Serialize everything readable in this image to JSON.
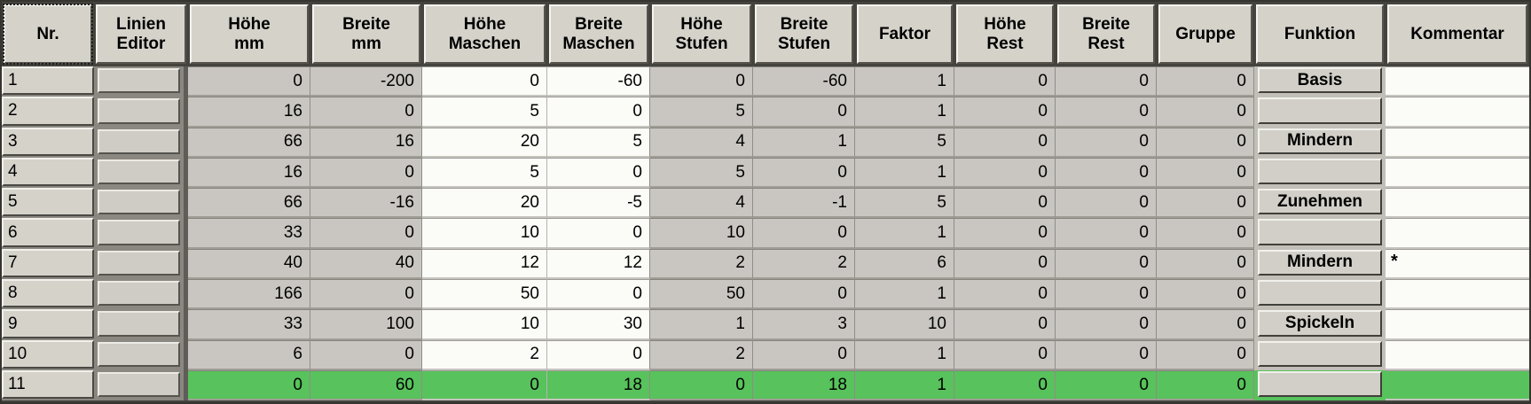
{
  "table": {
    "columns": [
      {
        "key": "nr",
        "label": "Nr."
      },
      {
        "key": "linien_editor",
        "label": "Linien\nEditor"
      },
      {
        "key": "hoehe_mm",
        "label": "Höhe\nmm"
      },
      {
        "key": "breite_mm",
        "label": "Breite\nmm"
      },
      {
        "key": "hoehe_maschen",
        "label": "Höhe\nMaschen"
      },
      {
        "key": "breite_maschen",
        "label": "Breite\nMaschen"
      },
      {
        "key": "hoehe_stufen",
        "label": "Höhe\nStufen"
      },
      {
        "key": "breite_stufen",
        "label": "Breite\nStufen"
      },
      {
        "key": "faktor",
        "label": "Faktor"
      },
      {
        "key": "hoehe_rest",
        "label": "Höhe\nRest"
      },
      {
        "key": "breite_rest",
        "label": "Breite\nRest"
      },
      {
        "key": "gruppe",
        "label": "Gruppe"
      },
      {
        "key": "funktion",
        "label": "Funktion"
      },
      {
        "key": "kommentar",
        "label": "Kommentar"
      }
    ],
    "rows": [
      {
        "nr": "1",
        "hoehe_mm": "0",
        "breite_mm": "-200",
        "hoehe_maschen": "0",
        "breite_maschen": "-60",
        "hoehe_stufen": "0",
        "breite_stufen": "-60",
        "faktor": "1",
        "hoehe_rest": "0",
        "breite_rest": "0",
        "gruppe": "0",
        "funktion": "Basis",
        "kommentar": "",
        "selected": false
      },
      {
        "nr": "2",
        "hoehe_mm": "16",
        "breite_mm": "0",
        "hoehe_maschen": "5",
        "breite_maschen": "0",
        "hoehe_stufen": "5",
        "breite_stufen": "0",
        "faktor": "1",
        "hoehe_rest": "0",
        "breite_rest": "0",
        "gruppe": "0",
        "funktion": "",
        "kommentar": "",
        "selected": false
      },
      {
        "nr": "3",
        "hoehe_mm": "66",
        "breite_mm": "16",
        "hoehe_maschen": "20",
        "breite_maschen": "5",
        "hoehe_stufen": "4",
        "breite_stufen": "1",
        "faktor": "5",
        "hoehe_rest": "0",
        "breite_rest": "0",
        "gruppe": "0",
        "funktion": "Mindern",
        "kommentar": "",
        "selected": false
      },
      {
        "nr": "4",
        "hoehe_mm": "16",
        "breite_mm": "0",
        "hoehe_maschen": "5",
        "breite_maschen": "0",
        "hoehe_stufen": "5",
        "breite_stufen": "0",
        "faktor": "1",
        "hoehe_rest": "0",
        "breite_rest": "0",
        "gruppe": "0",
        "funktion": "",
        "kommentar": "",
        "selected": false
      },
      {
        "nr": "5",
        "hoehe_mm": "66",
        "breite_mm": "-16",
        "hoehe_maschen": "20",
        "breite_maschen": "-5",
        "hoehe_stufen": "4",
        "breite_stufen": "-1",
        "faktor": "5",
        "hoehe_rest": "0",
        "breite_rest": "0",
        "gruppe": "0",
        "funktion": "Zunehmen",
        "kommentar": "",
        "selected": false
      },
      {
        "nr": "6",
        "hoehe_mm": "33",
        "breite_mm": "0",
        "hoehe_maschen": "10",
        "breite_maschen": "0",
        "hoehe_stufen": "10",
        "breite_stufen": "0",
        "faktor": "1",
        "hoehe_rest": "0",
        "breite_rest": "0",
        "gruppe": "0",
        "funktion": "",
        "kommentar": "",
        "selected": false
      },
      {
        "nr": "7",
        "hoehe_mm": "40",
        "breite_mm": "40",
        "hoehe_maschen": "12",
        "breite_maschen": "12",
        "hoehe_stufen": "2",
        "breite_stufen": "2",
        "faktor": "6",
        "hoehe_rest": "0",
        "breite_rest": "0",
        "gruppe": "0",
        "funktion": "Mindern",
        "kommentar": "*",
        "selected": false
      },
      {
        "nr": "8",
        "hoehe_mm": "166",
        "breite_mm": "0",
        "hoehe_maschen": "50",
        "breite_maschen": "0",
        "hoehe_stufen": "50",
        "breite_stufen": "0",
        "faktor": "1",
        "hoehe_rest": "0",
        "breite_rest": "0",
        "gruppe": "0",
        "funktion": "",
        "kommentar": "",
        "selected": false
      },
      {
        "nr": "9",
        "hoehe_mm": "33",
        "breite_mm": "100",
        "hoehe_maschen": "10",
        "breite_maschen": "30",
        "hoehe_stufen": "1",
        "breite_stufen": "3",
        "faktor": "10",
        "hoehe_rest": "0",
        "breite_rest": "0",
        "gruppe": "0",
        "funktion": "Spickeln",
        "kommentar": "",
        "selected": false
      },
      {
        "nr": "10",
        "hoehe_mm": "6",
        "breite_mm": "0",
        "hoehe_maschen": "2",
        "breite_maschen": "0",
        "hoehe_stufen": "2",
        "breite_stufen": "0",
        "faktor": "1",
        "hoehe_rest": "0",
        "breite_rest": "0",
        "gruppe": "0",
        "funktion": "",
        "kommentar": "",
        "selected": false
      },
      {
        "nr": "11",
        "hoehe_mm": "0",
        "breite_mm": "60",
        "hoehe_maschen": "0",
        "breite_maschen": "18",
        "hoehe_stufen": "0",
        "breite_stufen": "18",
        "faktor": "1",
        "hoehe_rest": "0",
        "breite_rest": "0",
        "gruppe": "0",
        "funktion": "",
        "kommentar": "",
        "selected": true
      }
    ],
    "colors": {
      "selected_row_green": "#58c25c",
      "gray_cell": "#c9c6c1",
      "white_cell": "#fbfbf7",
      "header_bg": "#d5d2ca"
    }
  }
}
